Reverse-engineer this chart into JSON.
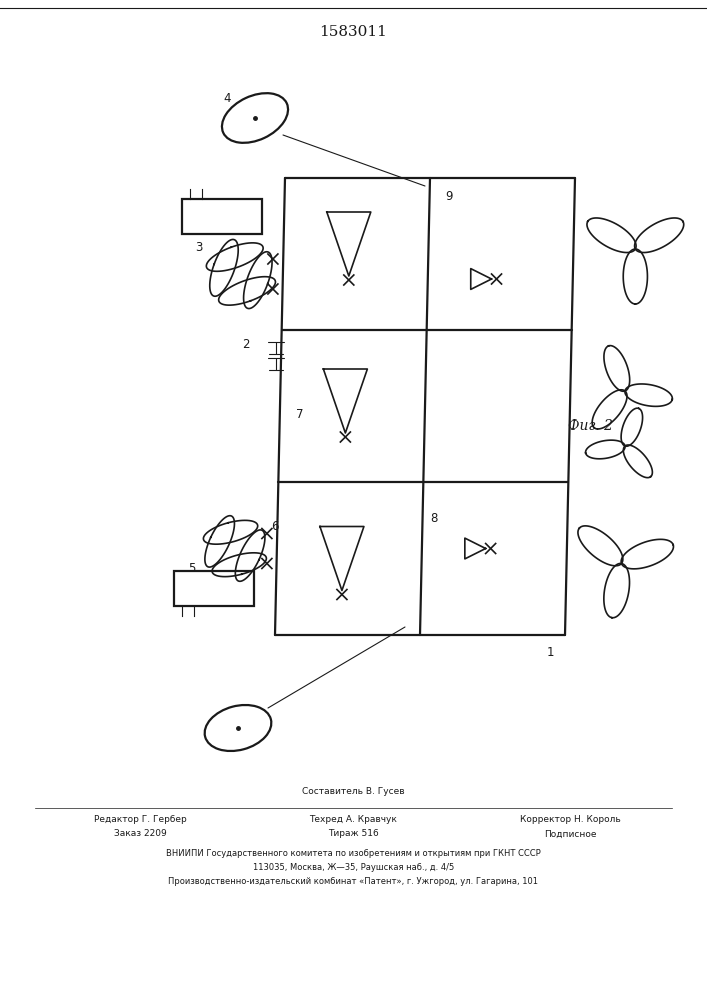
{
  "title": "1583011",
  "fig_label": "Фиг. 2",
  "bg_color": "#ffffff",
  "lc": "#1a1a1a",
  "footer_col1_line1": "Редактор Г. Гербер",
  "footer_col1_line2": "Заказ 2209",
  "footer_col2_line0": "Составитель В. Гусев",
  "footer_col2_line1": "Техред А. Кравчук",
  "footer_col2_line2": "Тираж 516",
  "footer_col3_line1": "Корректор Н. Король",
  "footer_col3_line2": "Подписное",
  "footer_vniip1": "ВНИИПИ Государственного комитета по изобретениям и открытиям при ГКНТ СССР",
  "footer_vniip2": "113035, Москва, Ж—35, Раушская наб., д. 4/5",
  "footer_vniip3": "Производственно-издательский комбинат «Патент», г. Ужгород, ул. Гагарина, 101"
}
